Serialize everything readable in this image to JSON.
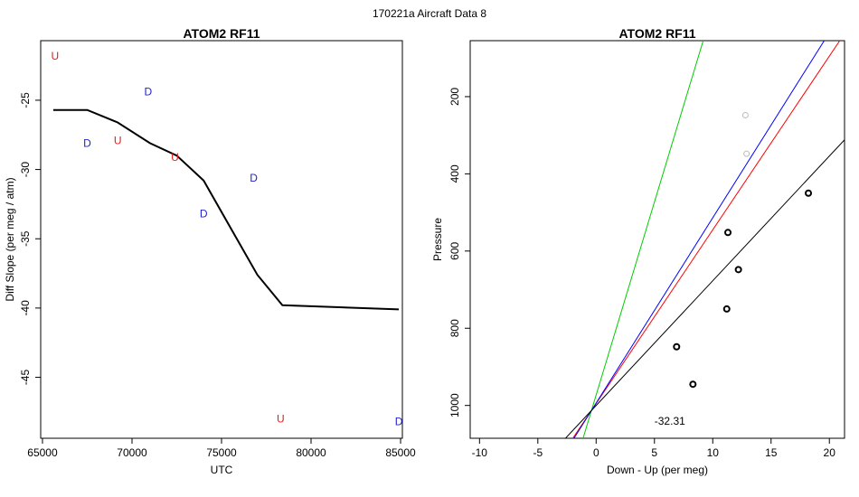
{
  "suptitle": "170221a   Aircraft Data 8",
  "chart_data": [
    {
      "type": "line",
      "title": "ATOM2 RF11",
      "xlabel": "UTC",
      "ylabel": "Diff Slope (per meg / atm)",
      "xlim": [
        64900,
        85100
      ],
      "ylim": [
        -49.4,
        -20.7
      ],
      "xticks": [
        65000,
        70000,
        75000,
        80000,
        85000
      ],
      "yticks": [
        -25,
        -30,
        -35,
        -40,
        -45
      ],
      "series": [
        {
          "color": "#000000",
          "x": [
            65600,
            67500,
            69200,
            71000,
            72500,
            74000,
            75500,
            77000,
            78400,
            84900
          ],
          "y": [
            -25.7,
            -25.7,
            -26.6,
            -28.1,
            -29.0,
            -30.8,
            -34.2,
            -37.6,
            -39.8,
            -40.1
          ]
        }
      ],
      "markers": [
        {
          "label": "U",
          "x": 65700,
          "y": -21.8,
          "color": "#e41a1c"
        },
        {
          "label": "D",
          "x": 70900,
          "y": -24.4,
          "color": "#1f1fd1"
        },
        {
          "label": "D",
          "x": 67500,
          "y": -28.1,
          "color": "#1f1fd1"
        },
        {
          "label": "U",
          "x": 69200,
          "y": -27.9,
          "color": "#e41a1c"
        },
        {
          "label": "U",
          "x": 72400,
          "y": -29.1,
          "color": "#e41a1c"
        },
        {
          "label": "D",
          "x": 76800,
          "y": -30.6,
          "color": "#1f1fd1"
        },
        {
          "label": "D",
          "x": 74000,
          "y": -33.2,
          "color": "#1f1fd1"
        },
        {
          "label": "U",
          "x": 78300,
          "y": -48.0,
          "color": "#e41a1c"
        },
        {
          "label": "D",
          "x": 84900,
          "y": -48.2,
          "color": "#1f1fd1"
        }
      ]
    },
    {
      "type": "scatter",
      "title": "ATOM2 RF11",
      "xlabel": "Down - Up (per meg)",
      "ylabel": "Pressure",
      "xlim": [
        -10.8,
        21.3
      ],
      "ylim": [
        1085,
        55
      ],
      "y_reversed": true,
      "xticks": [
        -10,
        -5,
        0,
        5,
        10,
        15,
        20
      ],
      "yticks": [
        200,
        400,
        600,
        800,
        1000
      ],
      "points_black": [
        [
          18.2,
          450
        ],
        [
          11.3,
          552
        ],
        [
          12.2,
          648
        ],
        [
          11.2,
          750
        ],
        [
          6.9,
          848
        ],
        [
          8.3,
          945
        ]
      ],
      "points_gray": [
        [
          12.8,
          248
        ],
        [
          12.9,
          348
        ]
      ],
      "lines": [
        {
          "color": "#ff0000",
          "x0": -0.4,
          "slope": -45.0
        },
        {
          "color": "#00cc00",
          "x0": -0.4,
          "slope": -100.0
        },
        {
          "color": "#0000ff",
          "x0": -0.4,
          "slope": -48.0
        },
        {
          "color": "#000000",
          "x0": -0.4,
          "slope": -32.31
        }
      ],
      "annotation": {
        "text": "-32.31",
        "x": 5.0,
        "y": 1040
      }
    }
  ]
}
